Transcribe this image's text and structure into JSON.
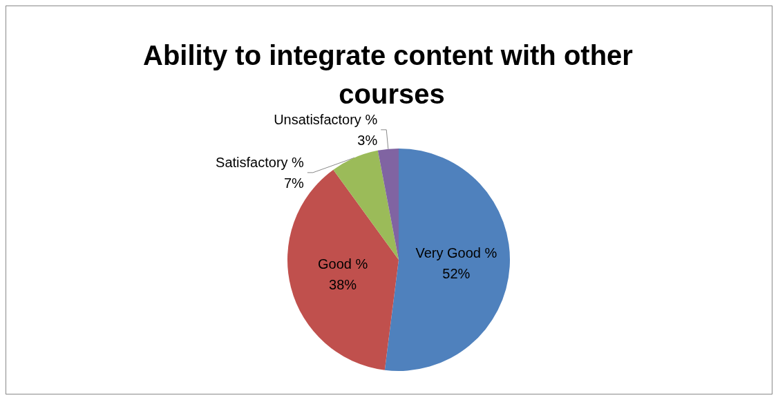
{
  "chart_data": {
    "type": "pie",
    "title": "Ability to integrate content with other courses",
    "categories": [
      "Very Good %",
      "Good %",
      "Satisfactory %",
      "Unsatisfactory %"
    ],
    "values": [
      52,
      38,
      7,
      3
    ],
    "value_labels": [
      "52%",
      "38%",
      "7%",
      "3%"
    ],
    "colors": [
      "#4f81bd",
      "#c0504d",
      "#9bbb59",
      "#8064a2"
    ],
    "legend": false
  }
}
